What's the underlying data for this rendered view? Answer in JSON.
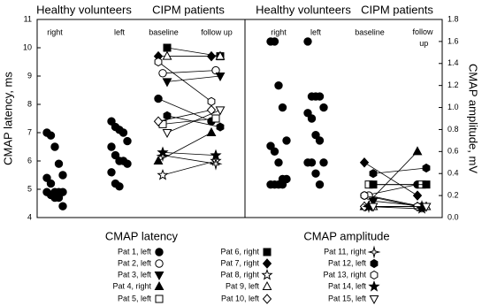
{
  "patients": [
    {
      "name": "Pat 1, left",
      "marker": "circle",
      "filled": true
    },
    {
      "name": "Pat 2, left",
      "marker": "circle",
      "filled": false
    },
    {
      "name": "Pat 3, left",
      "marker": "triangle-down",
      "filled": true
    },
    {
      "name": "Pat 4, right",
      "marker": "triangle-up",
      "filled": true
    },
    {
      "name": "Pat 5, left",
      "marker": "square",
      "filled": false
    },
    {
      "name": "Pat 6, right",
      "marker": "square",
      "filled": true
    },
    {
      "name": "Pat 7, right",
      "marker": "diamond",
      "filled": true
    },
    {
      "name": "Pat 8, right",
      "marker": "star5",
      "filled": false
    },
    {
      "name": "Pat 9, left",
      "marker": "triangle-up",
      "filled": false
    },
    {
      "name": "Pat 10, left",
      "marker": "diamond",
      "filled": false
    },
    {
      "name": "Pat 11, right",
      "marker": "star4",
      "filled": false
    },
    {
      "name": "Pat 12, left",
      "marker": "hexagon",
      "filled": true
    },
    {
      "name": "Pat 13, right",
      "marker": "hexagon",
      "filled": false
    },
    {
      "name": "Pat 14, left",
      "marker": "star5",
      "filled": true
    },
    {
      "name": "Pat 15, left",
      "marker": "triangle-down",
      "filled": false
    }
  ],
  "chart_data": [
    {
      "type": "scatter",
      "title": "CMAP latency",
      "ylabel": "CMAP latency, ms",
      "ylim": [
        4,
        11
      ],
      "yticks": [
        4,
        5,
        6,
        7,
        8,
        9,
        10,
        11
      ],
      "groups": [
        "Healthy volunteers",
        "CIPM patients"
      ],
      "categories": [
        "right",
        "left",
        "baseline",
        "follow up"
      ],
      "healthy": [
        [
          7.0,
          6.9,
          6.5,
          5.9,
          5.5,
          5.4,
          5.2,
          4.9,
          4.9,
          4.9,
          4.9,
          4.8,
          4.7,
          4.7,
          4.4
        ],
        [
          7.4,
          7.2,
          7.1,
          7.0,
          6.7,
          6.5,
          6.2,
          6.0,
          6.0,
          5.9,
          5.6,
          5.2,
          5.1
        ]
      ],
      "series": [
        {
          "values": [
            8.2,
            7.4
          ]
        },
        {
          "values": [
            9.1,
            9.2
          ]
        },
        {
          "values": [
            8.8,
            9.0
          ]
        },
        {
          "values": [
            6.0,
            7.0
          ]
        },
        {
          "values": [
            7.3,
            7.5
          ]
        },
        {
          "values": [
            10.0,
            9.7
          ]
        },
        {
          "values": [
            9.7,
            9.7
          ]
        },
        {
          "values": [
            5.5,
            6.0
          ]
        },
        {
          "values": [
            9.7,
            9.7
          ]
        },
        {
          "values": [
            7.4,
            7.8
          ]
        },
        {
          "values": [
            6.2,
            5.9
          ]
        },
        {
          "values": [
            7.6,
            7.2
          ]
        },
        {
          "values": [
            9.5,
            8.1
          ]
        },
        {
          "values": [
            6.3,
            6.2
          ]
        },
        {
          "values": [
            7.0,
            7.8
          ]
        }
      ]
    },
    {
      "type": "scatter",
      "title": "CMAP amplitude",
      "y2label": "CMAP amplitude, mV",
      "y2lim": [
        0,
        1.8
      ],
      "y2ticks": [
        {
          "value": 0,
          "label": "0.0"
        },
        0.2,
        0.4,
        0.6,
        0.8,
        {
          "value": 1,
          "label": "1.0"
        },
        1.2,
        1.4,
        1.6,
        1.8
      ],
      "groups": [
        "Healthy volunteers",
        "CIPM patients"
      ],
      "categories": [
        "right",
        "left",
        "baseline",
        "follow up"
      ],
      "healthy": [
        [
          1.6,
          1.6,
          1.2,
          1.0,
          0.7,
          0.65,
          0.6,
          0.5,
          0.35,
          0.35,
          0.3,
          0.3,
          0.3,
          0.3
        ],
        [
          1.6,
          1.1,
          1.1,
          1.1,
          1.0,
          0.95,
          0.9,
          0.75,
          0.7,
          0.5,
          0.5,
          0.5,
          0.4,
          0.3
        ]
      ],
      "series": [
        {
          "values": [
            0.2,
            0.3
          ],
          "axis": "y2"
        },
        {
          "values": [
            0.2,
            0.1
          ],
          "axis": "y2"
        },
        {
          "values": [
            0.15,
            0.1
          ],
          "axis": "y2"
        },
        {
          "values": [
            0.1,
            0.6
          ],
          "axis": "y2"
        },
        {
          "values": [
            0.3,
            0.3
          ],
          "axis": "y2"
        },
        {
          "values": [
            0.3,
            0.3
          ],
          "axis": "y2"
        },
        {
          "values": [
            0.5,
            0.2
          ],
          "axis": "y2"
        },
        {
          "values": [
            0.1,
            0.1
          ],
          "axis": "y2"
        },
        {
          "values": [
            0.1,
            0.1
          ],
          "axis": "y2"
        },
        {
          "values": [
            0.1,
            0.1
          ],
          "axis": "y2"
        },
        {
          "values": [
            0.1,
            0.1
          ],
          "axis": "y2"
        },
        {
          "values": [
            0.4,
            0.45
          ],
          "axis": "y2"
        },
        {
          "values": [
            0.2,
            0.1
          ],
          "axis": "y2"
        },
        {
          "values": [
            0.1,
            0.08
          ],
          "axis": "y2"
        },
        {
          "values": [
            0.1,
            0.1
          ],
          "axis": "y2"
        }
      ]
    }
  ]
}
